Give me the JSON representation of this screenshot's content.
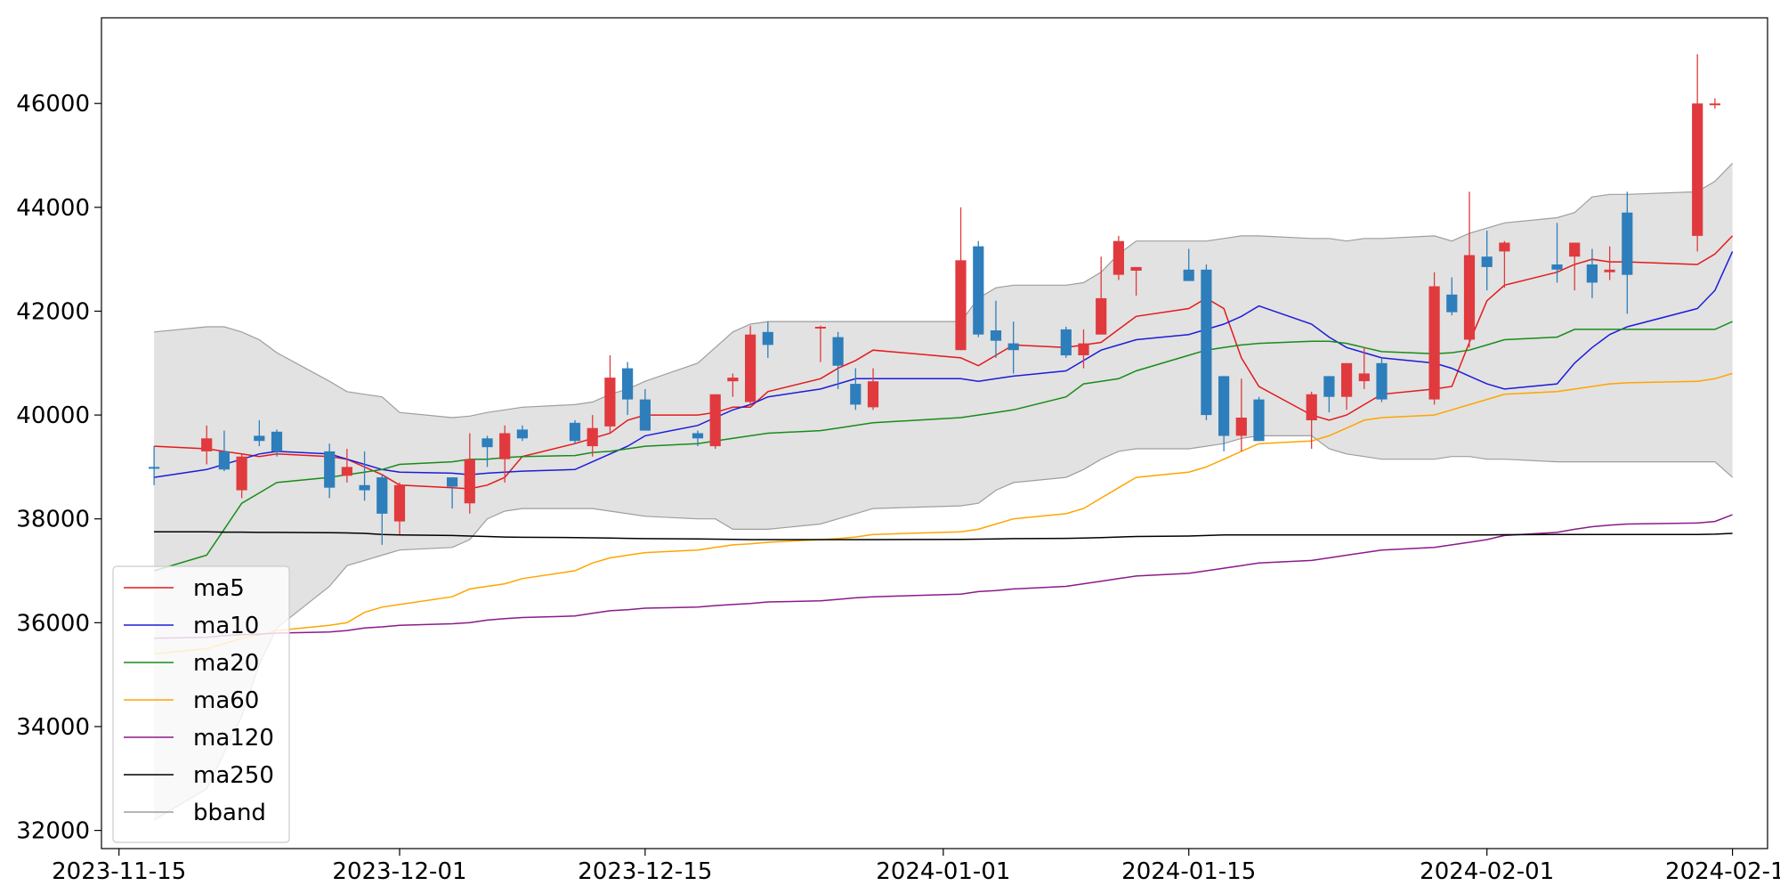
{
  "chart_data": {
    "type": "candlestick",
    "title": "",
    "xlabel": "",
    "ylabel": "",
    "ylim": [
      31650,
      47650
    ],
    "xlim": [
      "2023-11-14",
      "2024-02-17"
    ],
    "grid": false,
    "legend_position": "lower-left",
    "x_tick_labels": [
      "2023-11-15",
      "2023-12-01",
      "2023-12-15",
      "2024-01-01",
      "2024-01-15",
      "2024-02-01",
      "2024-02-15"
    ],
    "y_tick_labels": [
      "32000",
      "34000",
      "36000",
      "38000",
      "40000",
      "42000",
      "44000",
      "46000"
    ],
    "up_color": "#e03a3e",
    "down_color": "#2e7ebc",
    "band_color": "#e2e2e2",
    "band_edge_color": "#9e9e9e",
    "dates": [
      "2023-11-17",
      "2023-11-20",
      "2023-11-21",
      "2023-11-22",
      "2023-11-23",
      "2023-11-24",
      "2023-11-27",
      "2023-11-28",
      "2023-11-29",
      "2023-11-30",
      "2023-12-01",
      "2023-12-04",
      "2023-12-05",
      "2023-12-06",
      "2023-12-07",
      "2023-12-08",
      "2023-12-11",
      "2023-12-12",
      "2023-12-13",
      "2023-12-14",
      "2023-12-15",
      "2023-12-18",
      "2023-12-19",
      "2023-12-20",
      "2023-12-21",
      "2023-12-22",
      "2023-12-25",
      "2023-12-26",
      "2023-12-27",
      "2023-12-28",
      "2024-01-02",
      "2024-01-03",
      "2024-01-04",
      "2024-01-05",
      "2024-01-08",
      "2024-01-09",
      "2024-01-10",
      "2024-01-11",
      "2024-01-12",
      "2024-01-15",
      "2024-01-16",
      "2024-01-17",
      "2024-01-18",
      "2024-01-19",
      "2024-01-22",
      "2024-01-23",
      "2024-01-24",
      "2024-01-25",
      "2024-01-26",
      "2024-01-29",
      "2024-01-30",
      "2024-01-31",
      "2024-02-01",
      "2024-02-02",
      "2024-02-05",
      "2024-02-06",
      "2024-02-07",
      "2024-02-08",
      "2024-02-09",
      "2024-02-13",
      "2024-02-14",
      "2024-02-15"
    ],
    "ohlc": [
      [
        39000,
        39400,
        38650,
        38980
      ],
      [
        39300,
        39800,
        39050,
        39550
      ],
      [
        39300,
        39700,
        38920,
        38950
      ],
      [
        38550,
        39250,
        38400,
        39200
      ],
      [
        39600,
        39900,
        39400,
        39500
      ],
      [
        39680,
        39720,
        39200,
        39300
      ],
      [
        39300,
        39450,
        38400,
        38600
      ],
      [
        38830,
        39350,
        38700,
        39000
      ],
      [
        38650,
        39300,
        38350,
        38550
      ],
      [
        38800,
        38850,
        37500,
        38100
      ],
      [
        37950,
        38700,
        37700,
        38650
      ],
      [
        38800,
        38800,
        38200,
        38620
      ],
      [
        38300,
        39650,
        38100,
        39150
      ],
      [
        39550,
        39600,
        39000,
        39380
      ],
      [
        39150,
        39800,
        38700,
        39650
      ],
      [
        39720,
        39800,
        39500,
        39550
      ],
      [
        39850,
        39900,
        39450,
        39500
      ],
      [
        39400,
        40000,
        39200,
        39750
      ],
      [
        39780,
        41150,
        39650,
        40720
      ],
      [
        40900,
        41020,
        40000,
        40300
      ],
      [
        40300,
        40500,
        39700,
        39700
      ],
      [
        39650,
        39700,
        39400,
        39550
      ],
      [
        39400,
        40400,
        39350,
        40400
      ],
      [
        40650,
        40800,
        40350,
        40720
      ],
      [
        40250,
        41720,
        40200,
        41550
      ],
      [
        41600,
        41800,
        41100,
        41350
      ],
      [
        41680,
        41720,
        41020,
        41700
      ],
      [
        41500,
        41600,
        40500,
        40950
      ],
      [
        40600,
        40900,
        40100,
        40200
      ],
      [
        40150,
        40900,
        40100,
        40650
      ],
      [
        41250,
        44000,
        41250,
        42980
      ],
      [
        43250,
        43350,
        41500,
        41550
      ],
      [
        41630,
        42200,
        41100,
        41430
      ],
      [
        41380,
        41800,
        40800,
        41250
      ],
      [
        41650,
        41700,
        41100,
        41150
      ],
      [
        41150,
        41650,
        40900,
        41380
      ],
      [
        41550,
        43050,
        41550,
        42250
      ],
      [
        42700,
        43450,
        42600,
        43350
      ],
      [
        42780,
        42800,
        42300,
        42850
      ],
      [
        42800,
        43200,
        42600,
        42580
      ],
      [
        42800,
        42900,
        39900,
        40000
      ],
      [
        40750,
        40750,
        39300,
        39600
      ],
      [
        39600,
        40700,
        39300,
        39950
      ],
      [
        40300,
        40350,
        39500,
        39500
      ],
      [
        39900,
        40450,
        39350,
        40400
      ],
      [
        40750,
        40750,
        40050,
        40350
      ],
      [
        40350,
        41000,
        40100,
        41000
      ],
      [
        40650,
        41300,
        40500,
        40800
      ],
      [
        41000,
        41100,
        40250,
        40300
      ],
      [
        40300,
        42750,
        40200,
        42480
      ],
      [
        42320,
        42650,
        41920,
        41980
      ],
      [
        41450,
        44300,
        41300,
        43080
      ],
      [
        43050,
        43550,
        42400,
        42850
      ],
      [
        43150,
        43350,
        42450,
        43320
      ],
      [
        42900,
        43700,
        42550,
        42800
      ],
      [
        43050,
        43300,
        42400,
        43320
      ],
      [
        42900,
        43200,
        42250,
        42550
      ],
      [
        42750,
        43250,
        42600,
        42800
      ],
      [
        43900,
        44300,
        41950,
        42700
      ],
      [
        43450,
        46950,
        43150,
        46000
      ],
      [
        46000,
        46100,
        45900,
        46000
      ],
      [
        46000,
        46000,
        46000,
        46000
      ]
    ],
    "series": [
      {
        "name": "ma5",
        "color": "#e41a1c",
        "values": [
          39400,
          39350,
          39300,
          39250,
          39200,
          39250,
          39200,
          39150,
          39000,
          38850,
          38650,
          38600,
          38580,
          38650,
          38800,
          39200,
          39450,
          39550,
          39650,
          39900,
          40000,
          40000,
          40050,
          40150,
          40150,
          40450,
          40700,
          40900,
          41050,
          41250,
          41100,
          40950,
          41150,
          41350,
          41300,
          41350,
          41400,
          41650,
          41900,
          42050,
          42250,
          42050,
          41100,
          40550,
          40000,
          39900,
          40000,
          40200,
          40400,
          40500,
          40550,
          41400,
          42200,
          42500,
          42750,
          42900,
          43000,
          42950,
          42950,
          42900,
          43100,
          43450
        ]
      },
      {
        "name": "ma10",
        "color": "#1c1cd9",
        "values": [
          38800,
          38950,
          39050,
          39150,
          39250,
          39300,
          39250,
          39150,
          39050,
          38950,
          38900,
          38880,
          38850,
          38880,
          38900,
          38920,
          38950,
          39100,
          39250,
          39400,
          39600,
          39800,
          39950,
          40100,
          40200,
          40350,
          40500,
          40600,
          40700,
          40700,
          40700,
          40650,
          40700,
          40750,
          40850,
          41050,
          41250,
          41350,
          41450,
          41550,
          41650,
          41750,
          41900,
          42100,
          41750,
          41500,
          41300,
          41200,
          41100,
          41000,
          40900,
          40750,
          40600,
          40500,
          40600,
          41000,
          41300,
          41550,
          41700,
          42050,
          42400,
          43150
        ]
      },
      {
        "name": "ma20",
        "color": "#188c18",
        "values": [
          37000,
          37300,
          37800,
          38300,
          38500,
          38700,
          38800,
          38850,
          38900,
          38950,
          39050,
          39100,
          39150,
          39150,
          39180,
          39200,
          39220,
          39280,
          39300,
          39350,
          39400,
          39450,
          39500,
          39550,
          39600,
          39650,
          39700,
          39750,
          39800,
          39850,
          39950,
          40000,
          40050,
          40100,
          40350,
          40600,
          40650,
          40700,
          40850,
          41150,
          41250,
          41300,
          41350,
          41380,
          41420,
          41420,
          41380,
          41300,
          41220,
          41180,
          41200,
          41250,
          41350,
          41450,
          41500,
          41650,
          41650,
          41650,
          41650,
          41650,
          41650,
          41800
        ]
      },
      {
        "name": "ma60",
        "color": "#ffa500",
        "values": [
          35400,
          35500,
          35600,
          35700,
          35760,
          35850,
          35950,
          36000,
          36200,
          36300,
          36350,
          36500,
          36650,
          36700,
          36750,
          36850,
          37000,
          37150,
          37250,
          37300,
          37350,
          37400,
          37450,
          37500,
          37520,
          37550,
          37600,
          37620,
          37650,
          37700,
          37750,
          37800,
          37900,
          38000,
          38100,
          38200,
          38400,
          38600,
          38800,
          38900,
          39000,
          39150,
          39300,
          39450,
          39500,
          39600,
          39750,
          39900,
          39950,
          40000,
          40100,
          40200,
          40300,
          40400,
          40450,
          40500,
          40550,
          40600,
          40620,
          40650,
          40700,
          40800
        ]
      },
      {
        "name": "ma120",
        "color": "#8b1a8b",
        "values": [
          35700,
          35720,
          35750,
          35770,
          35780,
          35800,
          35820,
          35850,
          35900,
          35920,
          35950,
          35980,
          36000,
          36050,
          36080,
          36100,
          36130,
          36180,
          36230,
          36250,
          36280,
          36300,
          36330,
          36350,
          36370,
          36400,
          36420,
          36450,
          36480,
          36500,
          36550,
          36600,
          36620,
          36650,
          36700,
          36750,
          36800,
          36850,
          36900,
          36950,
          37000,
          37050,
          37100,
          37150,
          37200,
          37250,
          37300,
          37350,
          37400,
          37450,
          37500,
          37550,
          37600,
          37680,
          37740,
          37800,
          37850,
          37880,
          37900,
          37920,
          37950,
          38080
        ]
      },
      {
        "name": "ma250",
        "color": "#000000",
        "values": [
          37750,
          37750,
          37745,
          37745,
          37740,
          37740,
          37735,
          37730,
          37720,
          37700,
          37690,
          37680,
          37670,
          37660,
          37650,
          37645,
          37640,
          37635,
          37630,
          37625,
          37620,
          37615,
          37610,
          37605,
          37600,
          37600,
          37600,
          37600,
          37600,
          37600,
          37605,
          37610,
          37615,
          37620,
          37625,
          37630,
          37640,
          37650,
          37660,
          37670,
          37680,
          37690,
          37690,
          37690,
          37690,
          37690,
          37690,
          37690,
          37690,
          37690,
          37690,
          37690,
          37690,
          37695,
          37700,
          37700,
          37700,
          37700,
          37700,
          37700,
          37705,
          37720
        ]
      }
    ],
    "bband": {
      "name": "bband",
      "color": "#9e9e9e",
      "upper": [
        41600,
        41700,
        41700,
        41600,
        41450,
        41200,
        40650,
        40450,
        40400,
        40350,
        40050,
        39950,
        39980,
        40050,
        40100,
        40150,
        40200,
        40250,
        40400,
        40500,
        40650,
        41000,
        41300,
        41600,
        41750,
        41800,
        41800,
        41800,
        41800,
        41800,
        41800,
        42250,
        42450,
        42500,
        42500,
        42550,
        42750,
        43100,
        43350,
        43350,
        43350,
        43400,
        43450,
        43450,
        43400,
        43400,
        43350,
        43400,
        43400,
        43450,
        43350,
        43500,
        43600,
        43700,
        43800,
        43900,
        44200,
        44250,
        44250,
        44300,
        44500,
        44850
      ],
      "lower": [
        32200,
        32800,
        33500,
        34200,
        35200,
        35900,
        36700,
        37100,
        37200,
        37300,
        37400,
        37450,
        37600,
        38000,
        38150,
        38200,
        38200,
        38200,
        38150,
        38100,
        38050,
        38000,
        38000,
        37800,
        37800,
        37800,
        37900,
        38000,
        38100,
        38200,
        38250,
        38300,
        38550,
        38700,
        38800,
        38950,
        39150,
        39300,
        39350,
        39350,
        39400,
        39450,
        39550,
        39600,
        39600,
        39350,
        39250,
        39200,
        39150,
        39150,
        39200,
        39200,
        39150,
        39150,
        39100,
        39100,
        39100,
        39100,
        39100,
        39100,
        39100,
        38800
      ]
    },
    "legend": [
      "ma5",
      "ma10",
      "ma20",
      "ma60",
      "ma120",
      "ma250",
      "bband"
    ]
  }
}
